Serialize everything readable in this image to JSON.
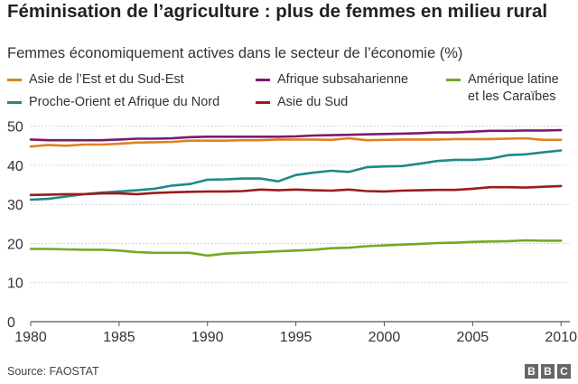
{
  "chart_data": {
    "type": "line",
    "title": "Féminisation de l’agriculture : plus de femmes en milieu rural",
    "subtitle": "Femmes économiquement actives dans le secteur de l’économie (%)",
    "x": [
      1980,
      1981,
      1982,
      1983,
      1984,
      1985,
      1986,
      1987,
      1988,
      1989,
      1990,
      1991,
      1992,
      1993,
      1994,
      1995,
      1996,
      1997,
      1998,
      1999,
      2000,
      2001,
      2002,
      2003,
      2004,
      2005,
      2006,
      2007,
      2008,
      2009,
      2010
    ],
    "xlim": [
      1980,
      2010.5
    ],
    "ylim": [
      0,
      52
    ],
    "x_ticks": [
      "1980",
      "1985",
      "1990",
      "1995",
      "2000",
      "2005",
      "2010"
    ],
    "y_ticks": [
      "0",
      "10",
      "20",
      "30",
      "40",
      "50"
    ],
    "grid": true,
    "legend_position": "top",
    "series": [
      {
        "name": "Asie de l’Est et du Sud-Est",
        "color": "#e0821f",
        "values": [
          44.8,
          45.2,
          45.0,
          45.3,
          45.3,
          45.5,
          45.8,
          45.9,
          46.0,
          46.3,
          46.3,
          46.3,
          46.4,
          46.4,
          46.6,
          46.6,
          46.6,
          46.5,
          46.9,
          46.4,
          46.5,
          46.6,
          46.6,
          46.6,
          46.7,
          46.7,
          46.7,
          46.8,
          46.9,
          46.5,
          46.5
        ]
      },
      {
        "name": "Afrique subsaharienne",
        "color": "#7b1a6e",
        "values": [
          46.6,
          46.4,
          46.4,
          46.4,
          46.4,
          46.6,
          46.8,
          46.8,
          46.9,
          47.2,
          47.3,
          47.3,
          47.3,
          47.3,
          47.3,
          47.4,
          47.6,
          47.7,
          47.8,
          47.9,
          48.0,
          48.1,
          48.2,
          48.4,
          48.4,
          48.6,
          48.8,
          48.8,
          48.9,
          48.9,
          49.0
        ]
      },
      {
        "name": "Amérique latine et les Caraïbes",
        "color": "#74a824",
        "values": [
          18.6,
          18.6,
          18.5,
          18.4,
          18.4,
          18.2,
          17.8,
          17.6,
          17.6,
          17.6,
          16.9,
          17.4,
          17.6,
          17.8,
          18.0,
          18.2,
          18.4,
          18.8,
          18.9,
          19.3,
          19.5,
          19.7,
          19.9,
          20.1,
          20.2,
          20.4,
          20.5,
          20.6,
          20.8,
          20.7,
          20.7
        ]
      },
      {
        "name": "Proche-Orient et Afrique du Nord",
        "color": "#1d8a8a",
        "values": [
          31.2,
          31.4,
          32.0,
          32.6,
          33.0,
          33.3,
          33.6,
          34.0,
          34.8,
          35.2,
          36.3,
          36.4,
          36.6,
          36.6,
          35.9,
          37.5,
          38.1,
          38.6,
          38.3,
          39.5,
          39.7,
          39.8,
          40.4,
          41.1,
          41.4,
          41.4,
          41.7,
          42.6,
          42.8,
          43.3,
          43.8
        ]
      },
      {
        "name": "Asie du Sud",
        "color": "#9c1b1b",
        "values": [
          32.4,
          32.5,
          32.6,
          32.6,
          32.8,
          32.8,
          32.6,
          32.9,
          33.1,
          33.2,
          33.3,
          33.3,
          33.4,
          33.8,
          33.6,
          33.8,
          33.6,
          33.5,
          33.8,
          33.4,
          33.3,
          33.5,
          33.6,
          33.7,
          33.7,
          34.0,
          34.4,
          34.4,
          34.3,
          34.5,
          34.7
        ]
      }
    ]
  },
  "source": "Source: FAOSTAT",
  "logo": {
    "letters": [
      "B",
      "B",
      "C"
    ]
  }
}
